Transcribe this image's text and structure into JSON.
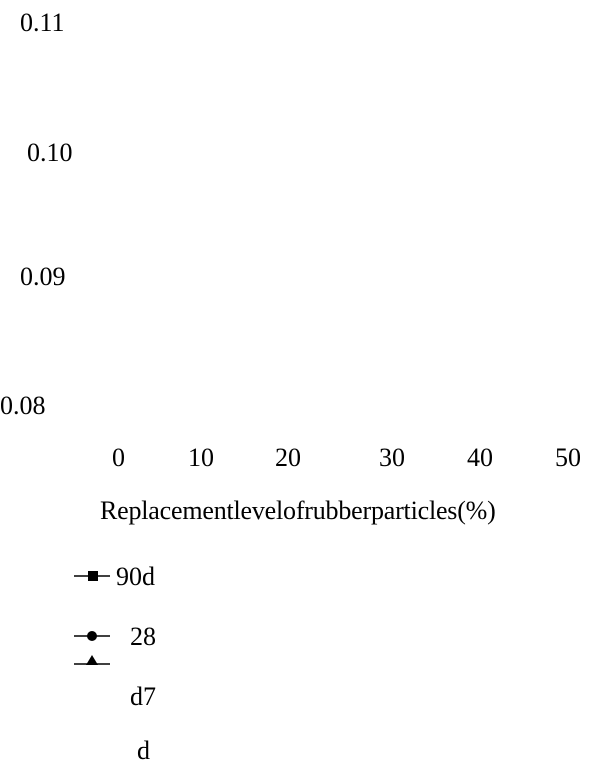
{
  "chart_data": {
    "type": "line",
    "title": "",
    "xlabel": "Replacementlevelofrubberparticles(%)",
    "ylabel": "",
    "x_ticks": [
      "0",
      "10",
      "20",
      "30",
      "40",
      "50"
    ],
    "y_ticks": [
      "0.11",
      "0.10",
      "0.09",
      "0.08"
    ],
    "xlim": [
      0,
      50
    ],
    "ylim": [
      0.08,
      0.11
    ],
    "grid": false,
    "legend_placement": "bottom-left",
    "legend": [
      {
        "marker": "square-icon",
        "label": "90d"
      },
      {
        "marker": "circle-icon",
        "label": "28"
      },
      {
        "marker": "triangle-icon",
        "label": "d7"
      },
      {
        "marker": "none",
        "label": "d"
      }
    ],
    "series": []
  }
}
